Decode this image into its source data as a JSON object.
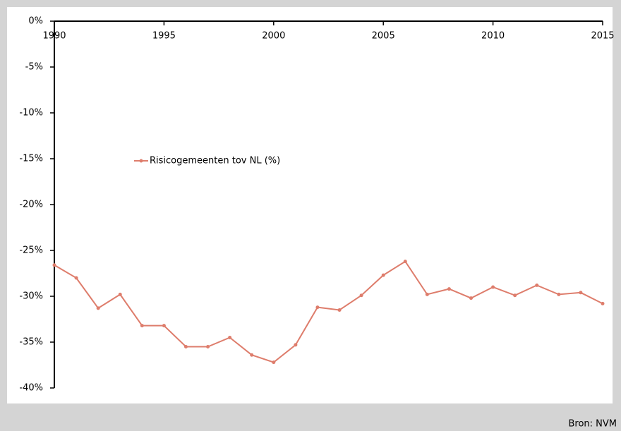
{
  "chart_data": {
    "type": "line",
    "x": [
      1990,
      1991,
      1992,
      1993,
      1994,
      1995,
      1996,
      1997,
      1998,
      1999,
      2000,
      2001,
      2002,
      2003,
      2004,
      2005,
      2006,
      2007,
      2008,
      2009,
      2010,
      2011,
      2012,
      2013,
      2014,
      2015
    ],
    "series": [
      {
        "name": "Risicogemeenten tov NL (%)",
        "color": "#de7d6c",
        "values": [
          -26.6,
          -28.0,
          -31.3,
          -29.8,
          -33.2,
          -33.2,
          -35.5,
          -35.5,
          -34.5,
          -36.4,
          -37.2,
          -35.3,
          -31.2,
          -31.5,
          -29.9,
          -27.7,
          -26.2,
          -29.8,
          -29.2,
          -30.2,
          -29.0,
          -29.9,
          -28.8,
          -29.8,
          -29.6,
          -30.8
        ]
      }
    ],
    "xlim": [
      1990,
      2015
    ],
    "xticks": [
      1990,
      1995,
      2000,
      2005,
      2010,
      2015
    ],
    "ylim": [
      -40,
      0
    ],
    "yticks": [
      {
        "value": 0,
        "label": "0%"
      },
      {
        "value": -5,
        "label": "-5%"
      },
      {
        "value": -10,
        "label": "-10%"
      },
      {
        "value": -15,
        "label": "-15%"
      },
      {
        "value": -20,
        "label": "-20%"
      },
      {
        "value": -25,
        "label": "-25%"
      },
      {
        "value": -30,
        "label": "-30%"
      },
      {
        "value": -35,
        "label": "-35%"
      },
      {
        "value": -40,
        "label": "-40%"
      }
    ],
    "source": "Bron: NVM"
  }
}
